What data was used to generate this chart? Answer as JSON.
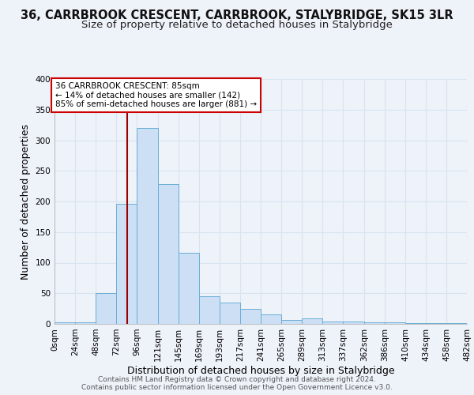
{
  "title": "36, CARRBROOK CRESCENT, CARRBROOK, STALYBRIDGE, SK15 3LR",
  "subtitle": "Size of property relative to detached houses in Stalybridge",
  "xlabel": "Distribution of detached houses by size in Stalybridge",
  "ylabel": "Number of detached properties",
  "bin_edges": [
    0,
    24,
    48,
    72,
    96,
    121,
    145,
    169,
    193,
    217,
    241,
    265,
    289,
    313,
    337,
    362,
    386,
    410,
    434,
    458,
    482
  ],
  "bin_counts": [
    2,
    2,
    50,
    196,
    320,
    228,
    116,
    45,
    35,
    24,
    15,
    6,
    9,
    4,
    4,
    2,
    2,
    1,
    1,
    1
  ],
  "bar_facecolor": "#ccdff5",
  "bar_edgecolor": "#6aaed6",
  "property_line_x": 85,
  "property_line_color": "#990000",
  "annotation_text": "36 CARRBROOK CRESCENT: 85sqm\n← 14% of detached houses are smaller (142)\n85% of semi-detached houses are larger (881) →",
  "annotation_box_edgecolor": "#cc0000",
  "annotation_box_facecolor": "#ffffff",
  "ylim": [
    0,
    400
  ],
  "yticks": [
    0,
    50,
    100,
    150,
    200,
    250,
    300,
    350,
    400
  ],
  "tick_labels": [
    "0sqm",
    "24sqm",
    "48sqm",
    "72sqm",
    "96sqm",
    "121sqm",
    "145sqm",
    "169sqm",
    "193sqm",
    "217sqm",
    "241sqm",
    "265sqm",
    "289sqm",
    "313sqm",
    "337sqm",
    "362sqm",
    "386sqm",
    "410sqm",
    "434sqm",
    "458sqm",
    "482sqm"
  ],
  "footer_line1": "Contains HM Land Registry data © Crown copyright and database right 2024.",
  "footer_line2": "Contains public sector information licensed under the Open Government Licence v3.0.",
  "bg_color": "#eef2f9",
  "grid_color": "#d8e4f0",
  "title_fontsize": 10.5,
  "subtitle_fontsize": 9.5,
  "axis_label_fontsize": 9,
  "tick_fontsize": 7.5,
  "footer_fontsize": 6.5
}
